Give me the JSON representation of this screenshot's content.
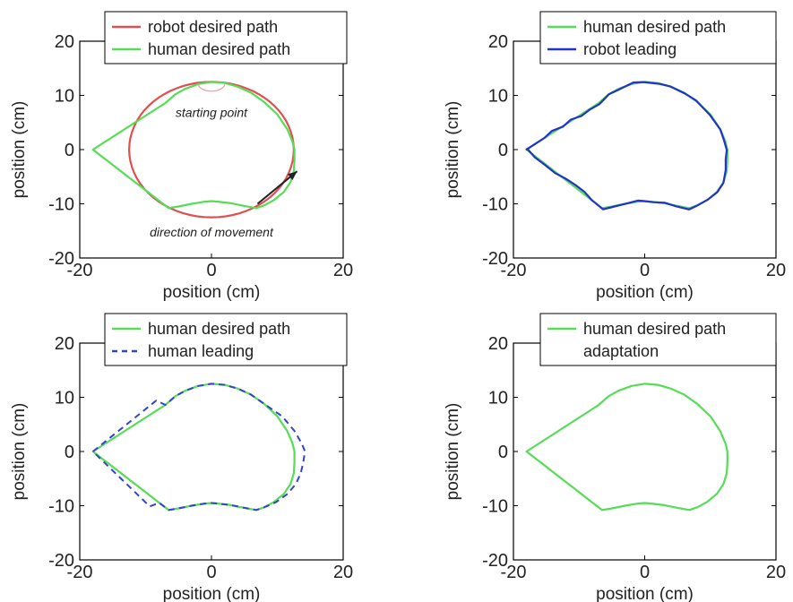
{
  "colors": {
    "human_desired": "#55dd55",
    "robot_desired": "#e05050",
    "robot_leading": "#2233cc",
    "human_leading": "#3344cc",
    "adaptation": "#c0c0c0",
    "axis": "#000000",
    "annotation_text": "#555555",
    "arrow": "#222222"
  },
  "chart_data": [
    {
      "type": "line",
      "xlabel": "position (cm)",
      "ylabel": "position (cm)",
      "xlim": [
        -20,
        20
      ],
      "ylim": [
        -20,
        20
      ],
      "xticks": [
        "-20",
        "0",
        "20"
      ],
      "yticks": [
        "-20",
        "-10",
        "0",
        "10",
        "20"
      ],
      "grid": false,
      "legend_position": "top",
      "series": [
        {
          "name": "robot desired path",
          "color": "#e05050",
          "style": "solid",
          "shape": "circle",
          "cx": 0,
          "cy": 0,
          "r": 12.5
        },
        {
          "name": "human desired path",
          "color": "#55dd55",
          "style": "solid",
          "shape": "teardrop"
        }
      ],
      "annotations": [
        {
          "text": "starting point",
          "x": 0,
          "y": 6
        },
        {
          "text": "direction of movement",
          "x": 0,
          "y": -16
        }
      ],
      "arrow": {
        "from": [
          7,
          -10
        ],
        "to": [
          13,
          -4
        ]
      },
      "start_marker": {
        "cx": 0,
        "cy": 11.5,
        "r": 1
      }
    },
    {
      "type": "line",
      "xlabel": "position (cm)",
      "ylabel": "position (cm)",
      "xlim": [
        -20,
        20
      ],
      "ylim": [
        -20,
        20
      ],
      "xticks": [
        "-20",
        "0",
        "20"
      ],
      "yticks": [
        "-20",
        "-10",
        "0",
        "10",
        "20"
      ],
      "grid": false,
      "legend_position": "top",
      "series": [
        {
          "name": "human desired path",
          "color": "#55dd55",
          "style": "solid",
          "shape": "teardrop"
        },
        {
          "name": "robot leading",
          "color": "#2233cc",
          "style": "solid",
          "shape": "teardrop-noisy",
          "scale": 0.98
        }
      ]
    },
    {
      "type": "line",
      "xlabel": "position (cm)",
      "ylabel": "position (cm)",
      "xlim": [
        -20,
        20
      ],
      "ylim": [
        -20,
        20
      ],
      "xticks": [
        "-20",
        "0",
        "20"
      ],
      "yticks": [
        "-20",
        "-10",
        "0",
        "10",
        "20"
      ],
      "grid": false,
      "legend_position": "top",
      "series": [
        {
          "name": "human desired path",
          "color": "#55dd55",
          "style": "solid",
          "shape": "teardrop"
        },
        {
          "name": "human leading",
          "color": "#3344cc",
          "style": "dashed",
          "shape": "teardrop-wide"
        }
      ]
    },
    {
      "type": "line",
      "xlabel": "position (cm)",
      "ylabel": "position (cm)",
      "xlim": [
        -20,
        20
      ],
      "ylim": [
        -20,
        20
      ],
      "xticks": [
        "-20",
        "0",
        "20"
      ],
      "yticks": [
        "-20",
        "-10",
        "0",
        "10",
        "20"
      ],
      "grid": false,
      "legend_position": "top",
      "series": [
        {
          "name": "human desired path",
          "color": "#55dd55",
          "style": "solid",
          "shape": "teardrop"
        },
        {
          "name": "adaptation",
          "color": "#c0c0c0",
          "style": "solid",
          "shape": "teardrop"
        }
      ]
    }
  ]
}
